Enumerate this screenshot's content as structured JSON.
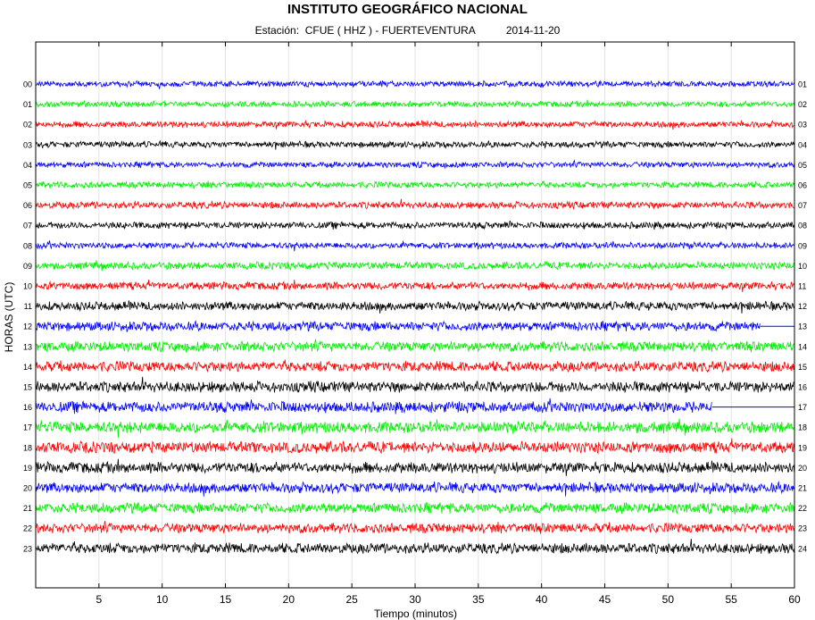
{
  "header": {
    "title": "INSTITUTO GEOGRÁFICO NACIONAL",
    "station_label": "Estación:",
    "station": "CFUE ( HHZ ) - FUERTEVENTURA",
    "date": "2014-11-20"
  },
  "chart_data": {
    "type": "line",
    "title": "INSTITUTO GEOGRÁFICO NACIONAL",
    "xlabel": "Tiempo (minutos)",
    "ylabel": "HORAS (UTC)",
    "xlim": [
      0,
      60
    ],
    "x_ticks": [
      5,
      10,
      15,
      20,
      25,
      30,
      35,
      40,
      45,
      50,
      55,
      60
    ],
    "grid": true,
    "left_hour_labels": [
      "00",
      "01",
      "02",
      "03",
      "04",
      "05",
      "06",
      "07",
      "08",
      "09",
      "10",
      "11",
      "12",
      "13",
      "14",
      "15",
      "16",
      "17",
      "18",
      "19",
      "20",
      "21",
      "22",
      "23"
    ],
    "right_hour_labels": [
      "01",
      "02",
      "03",
      "04",
      "05",
      "06",
      "07",
      "08",
      "09",
      "10",
      "11",
      "12",
      "13",
      "14",
      "15",
      "16",
      "17",
      "18",
      "19",
      "20",
      "21",
      "22",
      "23",
      "24"
    ],
    "trace_colors": [
      "#0000ff",
      "#00ee00",
      "#ff0000",
      "#000000"
    ],
    "trace_relative_amplitude": [
      0.55,
      0.55,
      0.6,
      0.6,
      0.55,
      0.6,
      0.65,
      0.65,
      0.6,
      0.7,
      0.75,
      0.85,
      0.9,
      0.95,
      1.0,
      1.05,
      1.05,
      1.1,
      1.1,
      1.05,
      1.0,
      1.0,
      0.95,
      1.0
    ],
    "trace_end_minute": [
      60,
      60,
      60,
      60,
      60,
      60,
      60,
      60,
      60,
      60,
      60,
      60,
      57.3,
      60,
      60,
      60,
      53.5,
      60,
      60,
      60,
      60,
      60,
      60,
      60
    ],
    "flatline_after_end": [
      false,
      false,
      false,
      false,
      false,
      false,
      false,
      false,
      false,
      false,
      false,
      false,
      true,
      false,
      false,
      false,
      true,
      false,
      false,
      false,
      false,
      false,
      false,
      false
    ]
  }
}
